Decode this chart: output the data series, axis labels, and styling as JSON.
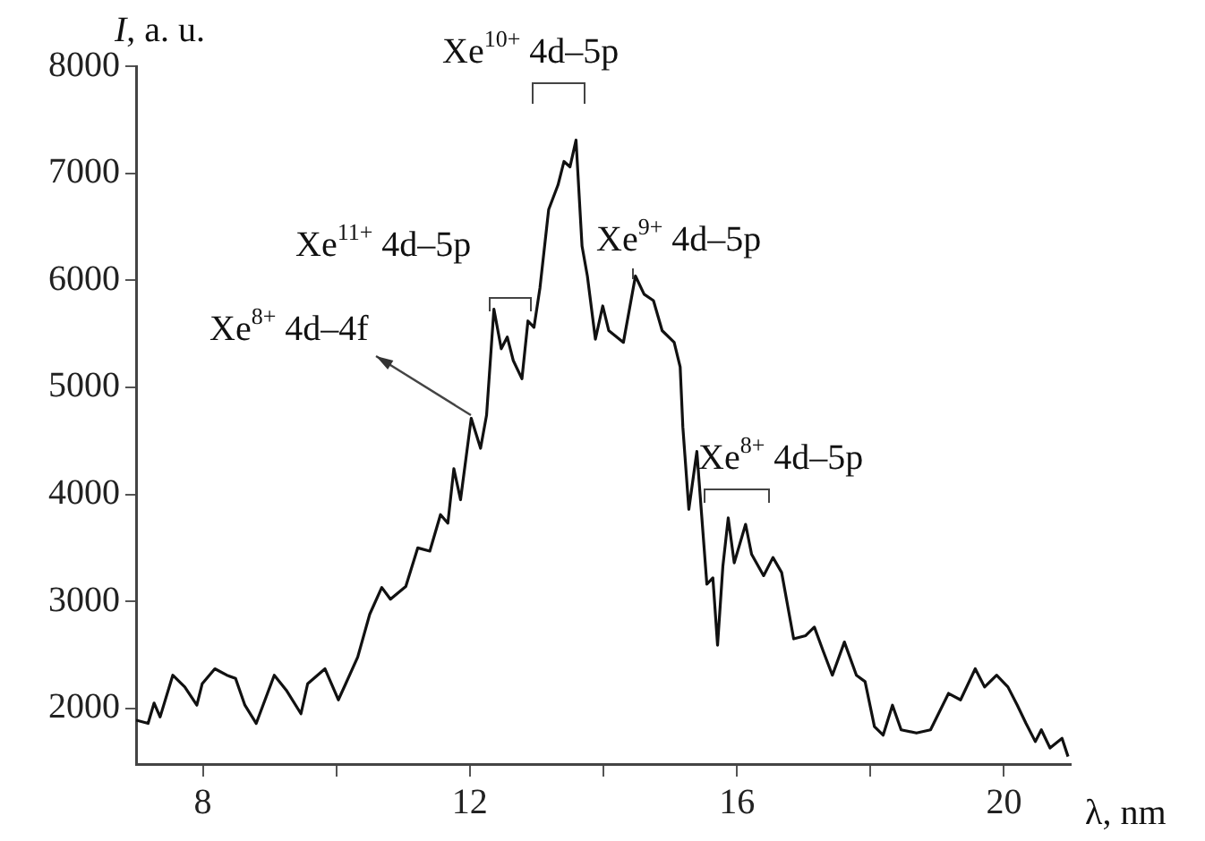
{
  "chart_data": {
    "type": "line",
    "xlabel": "λ, nm",
    "ylabel": "I, a. u.",
    "x": [
      7.0,
      7.18,
      7.27,
      7.36,
      7.55,
      7.73,
      7.91,
      7.99,
      8.18,
      8.36,
      8.49,
      8.63,
      8.8,
      9.07,
      9.25,
      9.47,
      9.57,
      9.83,
      10.03,
      10.14,
      10.32,
      10.5,
      10.68,
      10.81,
      11.04,
      11.22,
      11.4,
      11.56,
      11.67,
      11.76,
      11.86,
      12.02,
      12.16,
      12.25,
      12.36,
      12.47,
      12.56,
      12.65,
      12.78,
      12.87,
      12.96,
      13.05,
      13.18,
      13.32,
      13.41,
      13.5,
      13.59,
      13.68,
      13.76,
      13.88,
      13.99,
      14.08,
      14.3,
      14.48,
      14.61,
      14.75,
      14.88,
      15.06,
      15.15,
      15.19,
      15.28,
      15.4,
      15.55,
      15.64,
      15.71,
      15.79,
      15.87,
      15.96,
      16.13,
      16.22,
      16.4,
      16.54,
      16.67,
      16.85,
      17.03,
      17.16,
      17.29,
      17.43,
      17.61,
      17.79,
      17.92,
      18.06,
      18.19,
      18.33,
      18.46,
      18.69,
      18.9,
      19.17,
      19.35,
      19.57,
      19.71,
      19.89,
      20.06,
      20.2,
      20.33,
      20.47,
      20.56,
      20.69,
      20.87,
      20.96
    ],
    "series": [
      {
        "color": "#111111",
        "values": [
          1890,
          1860,
          2050,
          1920,
          2310,
          2200,
          2030,
          2230,
          2370,
          2310,
          2280,
          2030,
          1860,
          2310,
          2170,
          1950,
          2230,
          2370,
          2080,
          2230,
          2480,
          2880,
          3130,
          3020,
          3140,
          3500,
          3470,
          3810,
          3730,
          4240,
          3950,
          4710,
          4430,
          4740,
          5730,
          5360,
          5470,
          5250,
          5080,
          5620,
          5560,
          5930,
          6660,
          6890,
          7110,
          7060,
          7310,
          6320,
          6040,
          5450,
          5760,
          5530,
          5420,
          6040,
          5870,
          5810,
          5530,
          5420,
          5190,
          4630,
          3860,
          4400,
          3160,
          3220,
          2590,
          3330,
          3780,
          3360,
          3720,
          3440,
          3240,
          3410,
          3270,
          2650,
          2680,
          2760,
          2540,
          2310,
          2620,
          2310,
          2250,
          1830,
          1750,
          2030,
          1800,
          1770,
          1800,
          2140,
          2080,
          2370,
          2200,
          2310,
          2200,
          2030,
          1860,
          1690,
          1800,
          1630,
          1720,
          1550
        ]
      }
    ],
    "xlim": [
      7,
      21
    ],
    "xticks": [
      8,
      {
        "value": 10,
        "label": null
      },
      12,
      {
        "value": 14,
        "label": null
      },
      16,
      {
        "value": 18,
        "label": null
      },
      20
    ],
    "ylim": [
      1480,
      8000
    ],
    "yticks": [
      2000,
      3000,
      4000,
      5000,
      6000,
      7000,
      8000
    ],
    "grid": false,
    "legend": false,
    "marker": "none",
    "line_style": "solid",
    "annotations": [
      "Xe$^{8+}$ 4d–4f",
      "Xe$^{11+}$ 4d–5p",
      "Xe$^{10+}$ 4d–5p",
      "Xe$^{9+}$ 4d–5p",
      "Xe$^{8+}$ 4d–5p"
    ]
  }
}
